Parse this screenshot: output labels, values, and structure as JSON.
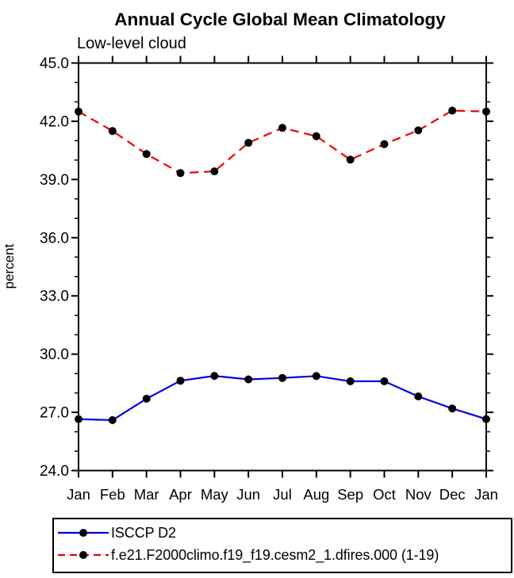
{
  "chart_data": {
    "type": "line",
    "title": "Annual Cycle Global Mean Climatology",
    "subtitle": "Low-level cloud",
    "xlabel": "",
    "ylabel": "percent",
    "categories": [
      "Jan",
      "Feb",
      "Mar",
      "Apr",
      "May",
      "Jun",
      "Jul",
      "Aug",
      "Sep",
      "Oct",
      "Nov",
      "Dec",
      "Jan"
    ],
    "ylim": [
      24.0,
      45.0
    ],
    "y_major_step": 3.0,
    "y_minor_step": 1.0,
    "grid": false,
    "legend_position": "bottom",
    "frame_color": "#000000",
    "marker": "filled-circle",
    "marker_color": "#000000",
    "series": [
      {
        "name": "ISCCP D2",
        "color": "#0000e6",
        "style": "solid",
        "values": [
          26.65,
          26.6,
          27.7,
          28.63,
          28.88,
          28.7,
          28.77,
          28.87,
          28.6,
          28.6,
          27.82,
          27.2,
          26.65
        ]
      },
      {
        "name": "f.e21.F2000climo.f19_f19.cesm2_1.dfires.000 (1-19)",
        "color": "#ee0000",
        "style": "dashed",
        "values": [
          42.5,
          41.5,
          40.31,
          39.33,
          39.42,
          40.89,
          41.66,
          41.23,
          40.02,
          40.82,
          41.53,
          42.55,
          42.5
        ]
      }
    ]
  }
}
